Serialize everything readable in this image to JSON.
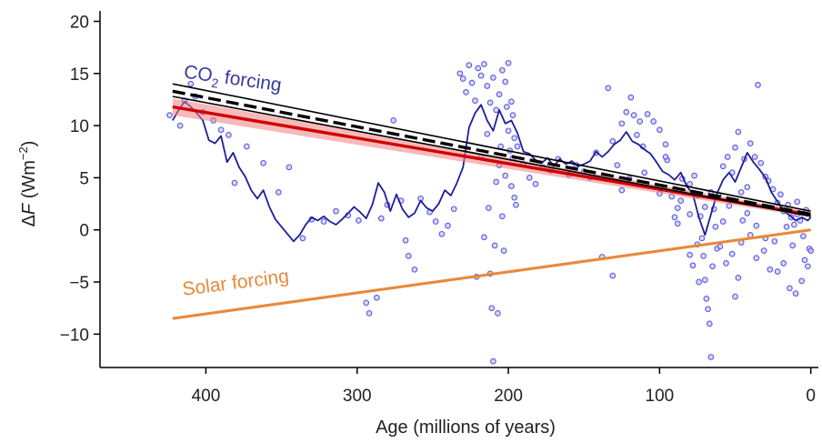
{
  "chart_data": {
    "type": "scatter",
    "title": "",
    "xlabel": "Age (millions of years)",
    "ylabel_parts": {
      "delta": "Δ",
      "F": "F",
      "unit_open": " (Wm",
      "exp": "−2",
      "unit_close": ")"
    },
    "xlim": [
      470,
      -5
    ],
    "ylim": [
      -13.2,
      21
    ],
    "x_reversed": true,
    "x_ticks": [
      {
        "value": 400,
        "label": "400"
      },
      {
        "value": 300,
        "label": "300"
      },
      {
        "value": 200,
        "label": "200"
      },
      {
        "value": 100,
        "label": "100"
      },
      {
        "value": 0,
        "label": "0"
      }
    ],
    "y_ticks": [
      {
        "value": 20,
        "label": "20"
      },
      {
        "value": 15,
        "label": "15"
      },
      {
        "value": 10,
        "label": "10"
      },
      {
        "value": 5,
        "label": "5"
      },
      {
        "value": 0,
        "label": "0"
      },
      {
        "value": -5,
        "label": "−5"
      },
      {
        "value": -10,
        "label": "−10"
      }
    ],
    "grid": false,
    "annotations": [
      {
        "name": "co2-label",
        "text_main": "CO",
        "text_sub": "2",
        "text_rest": " forcing",
        "x": 415,
        "y": 14.6,
        "rotate": 8,
        "color": "#3a3aa0"
      },
      {
        "name": "solar-label",
        "text_main": "Solar forcing",
        "text_sub": "",
        "text_rest": "",
        "x": 415,
        "y": -6.3,
        "rotate": -7.3,
        "color": "#e8893a"
      }
    ],
    "series": [
      {
        "kind": "line",
        "color": "#1e1e9a",
        "width": 1.8,
        "x": [
          422,
          418,
          414,
          410,
          406,
          402,
          398,
          394,
          390,
          386,
          382,
          378,
          374,
          370,
          366,
          362,
          358,
          354,
          350,
          346,
          342,
          338,
          334,
          330,
          326,
          322,
          318,
          314,
          310,
          306,
          302,
          298,
          294,
          290,
          286,
          282,
          278,
          274,
          270,
          266,
          262,
          258,
          254,
          250,
          246,
          242,
          238,
          234,
          230,
          226,
          222,
          218,
          214,
          210,
          206,
          202,
          198,
          194,
          190,
          186,
          182,
          178,
          174,
          170,
          166,
          162,
          158,
          154,
          150,
          146,
          142,
          138,
          134,
          130,
          126,
          122,
          118,
          114,
          110,
          106,
          102,
          98,
          94,
          90,
          86,
          82,
          78,
          74,
          70,
          66,
          62,
          58,
          54,
          50,
          46,
          42,
          38,
          34,
          30,
          26,
          22,
          18,
          14,
          10,
          6,
          2,
          0
        ],
        "y": [
          10.5,
          11.5,
          12.3,
          11.8,
          11.2,
          10.5,
          8.6,
          8.3,
          9.0,
          6.5,
          7.4,
          6.0,
          5.1,
          3.8,
          3.0,
          3.8,
          2.2,
          1.0,
          0.3,
          -0.4,
          -1.1,
          -0.5,
          0.5,
          1.2,
          0.9,
          1.3,
          0.8,
          0.5,
          1.0,
          1.6,
          2.2,
          1.7,
          1.1,
          2.4,
          4.5,
          3.6,
          1.8,
          3.4,
          2.0,
          1.2,
          1.6,
          2.8,
          2.1,
          1.8,
          2.5,
          3.8,
          3.3,
          4.5,
          6.0,
          9.8,
          11.2,
          12.0,
          10.5,
          9.5,
          11.5,
          10.2,
          10.5,
          9.3,
          7.5,
          7.3,
          6.7,
          6.4,
          6.9,
          6.1,
          6.8,
          6.3,
          6.6,
          6.1,
          6.3,
          6.6,
          7.5,
          7.0,
          7.5,
          8.2,
          8.6,
          9.4,
          8.5,
          8.2,
          7.7,
          7.3,
          6.5,
          5.6,
          5.3,
          4.8,
          5.5,
          4.2,
          3.4,
          1.2,
          -0.5,
          1.5,
          3.5,
          4.8,
          5.5,
          4.6,
          6.0,
          7.4,
          6.5,
          5.8,
          5.0,
          3.6,
          2.7,
          1.8,
          1.4,
          0.9,
          1.2,
          0.9,
          1.2
        ]
      },
      {
        "kind": "band",
        "color": "#d00000",
        "fill": "#f08080",
        "x": [
          422,
          0
        ],
        "y_upper": [
          12.6,
          1.7
        ],
        "y_lower": [
          11.0,
          1.2
        ],
        "y_center": [
          11.8,
          1.45
        ]
      },
      {
        "kind": "line",
        "color": "#d00000",
        "width": 3.4,
        "x": [
          422,
          0
        ],
        "y": [
          11.8,
          1.45
        ]
      },
      {
        "kind": "line",
        "color": "#000000",
        "width": 1.6,
        "x": [
          422,
          0
        ],
        "y": [
          14.0,
          1.8
        ]
      },
      {
        "kind": "line",
        "color": "#000000",
        "width": 1.6,
        "x": [
          422,
          0
        ],
        "y": [
          12.8,
          1.3
        ]
      },
      {
        "kind": "line",
        "color": "#000000",
        "width": 3.4,
        "dash": "14 6",
        "x": [
          422,
          0
        ],
        "y": [
          13.3,
          1.5
        ]
      },
      {
        "kind": "line",
        "color": "#e8893a",
        "width": 3,
        "x": [
          422,
          0
        ],
        "y": [
          -8.5,
          0
        ]
      }
    ],
    "points": {
      "color": "#5a5ae0",
      "fill": "#c8c8f4",
      "xy": [
        [
          424,
          11
        ],
        [
          417,
          10
        ],
        [
          414,
          12.4
        ],
        [
          410,
          14
        ],
        [
          407,
          12.8
        ],
        [
          402,
          11.3
        ],
        [
          395,
          10.5
        ],
        [
          390,
          9.6
        ],
        [
          385,
          9.1
        ],
        [
          381,
          4.5
        ],
        [
          373,
          8.0
        ],
        [
          362,
          6.4
        ],
        [
          352,
          3.6
        ],
        [
          345,
          6.0
        ],
        [
          336,
          -0.8
        ],
        [
          330,
          1.0
        ],
        [
          322,
          0.8
        ],
        [
          314,
          1.8
        ],
        [
          306,
          1.4
        ],
        [
          299,
          0.9
        ],
        [
          294,
          -7.0
        ],
        [
          292,
          -8.0
        ],
        [
          287,
          -6.5
        ],
        [
          284,
          1.1
        ],
        [
          280,
          2.4
        ],
        [
          276,
          10.5
        ],
        [
          271,
          2.8
        ],
        [
          268,
          -1.0
        ],
        [
          266,
          -2.5
        ],
        [
          262,
          -3.8
        ],
        [
          258,
          3.0
        ],
        [
          252,
          1.7
        ],
        [
          248,
          0.8
        ],
        [
          244,
          -0.4
        ],
        [
          240,
          0.4
        ],
        [
          236,
          2.0
        ],
        [
          232,
          15
        ],
        [
          230,
          14.5
        ],
        [
          228,
          13.2
        ],
        [
          226,
          15.8
        ],
        [
          224,
          14.1
        ],
        [
          222,
          12.4
        ],
        [
          220,
          15.5
        ],
        [
          218,
          14.8
        ],
        [
          216,
          15.9
        ],
        [
          214,
          13.8
        ],
        [
          212,
          12.2
        ],
        [
          210,
          14.6
        ],
        [
          208,
          11.5
        ],
        [
          206,
          13.0
        ],
        [
          204,
          15.3
        ],
        [
          202,
          14.2
        ],
        [
          200,
          16.0
        ],
        [
          198,
          12.3
        ],
        [
          197,
          11.0
        ],
        [
          196,
          8.8
        ],
        [
          221,
          -4.5
        ],
        [
          218,
          7.0
        ],
        [
          216,
          -0.7
        ],
        [
          214,
          9.2
        ],
        [
          213,
          2.1
        ],
        [
          212,
          -4.2
        ],
        [
          211,
          -7.5
        ],
        [
          210,
          -12.6
        ],
        [
          209,
          -1.5
        ],
        [
          208,
          4.6
        ],
        [
          207,
          -8.0
        ],
        [
          206,
          6.2
        ],
        [
          205,
          8.0
        ],
        [
          204,
          1.3
        ],
        [
          203,
          -2.0
        ],
        [
          202,
          5.2
        ],
        [
          201,
          11.8
        ],
        [
          200,
          9.5
        ],
        [
          199,
          7.6
        ],
        [
          198,
          4.2
        ],
        [
          197,
          6.9
        ],
        [
          196,
          3.1
        ],
        [
          195,
          2.4
        ],
        [
          194,
          8.0
        ],
        [
          190,
          6.3
        ],
        [
          186,
          5.0
        ],
        [
          182,
          4.4
        ],
        [
          177,
          6.0
        ],
        [
          172,
          5.7
        ],
        [
          167,
          6.8
        ],
        [
          160,
          5.3
        ],
        [
          155,
          6.2
        ],
        [
          150,
          5.6
        ],
        [
          146,
          5.0
        ],
        [
          142,
          7.4
        ],
        [
          138,
          -2.6
        ],
        [
          134,
          13.6
        ],
        [
          131,
          8.5
        ],
        [
          128,
          6.2
        ],
        [
          125,
          10.2
        ],
        [
          122,
          11.3
        ],
        [
          119,
          12.7
        ],
        [
          117,
          11.0
        ],
        [
          115,
          9.1
        ],
        [
          113,
          10.4
        ],
        [
          111,
          8.0
        ],
        [
          108,
          11.1
        ],
        [
          104,
          10.4
        ],
        [
          100,
          9.6
        ],
        [
          96,
          8.2
        ],
        [
          92,
          3.2
        ],
        [
          88,
          0.6
        ],
        [
          131,
          -4.4
        ],
        [
          125,
          3.8
        ],
        [
          120,
          4.9
        ],
        [
          110,
          5.5
        ],
        [
          100,
          3.5
        ],
        [
          95,
          6.7
        ],
        [
          90,
          1.2
        ],
        [
          77,
          5.2
        ],
        [
          75,
          3.3
        ],
        [
          73,
          1.3
        ],
        [
          72,
          -0.8
        ],
        [
          71,
          -2.5
        ],
        [
          70,
          -4.8
        ],
        [
          69,
          -6.6
        ],
        [
          68,
          -7.6
        ],
        [
          67,
          -9.0
        ],
        [
          66,
          -12.2
        ],
        [
          65,
          -3.5
        ],
        [
          64,
          2.0
        ],
        [
          63,
          0.3
        ],
        [
          62,
          -1.8
        ],
        [
          61,
          3.3
        ],
        [
          58,
          6.1
        ],
        [
          55,
          7.0
        ],
        [
          52,
          5.5
        ],
        [
          50,
          7.9
        ],
        [
          48,
          9.4
        ],
        [
          46,
          3.6
        ],
        [
          44,
          6.8
        ],
        [
          42,
          4.1
        ],
        [
          40,
          8.3
        ],
        [
          37,
          7.0
        ],
        [
          35,
          13.9
        ],
        [
          33,
          6.4
        ],
        [
          30,
          5.1
        ],
        [
          28,
          4.7
        ],
        [
          25,
          3.9
        ],
        [
          22,
          2.6
        ],
        [
          20,
          3.4
        ],
        [
          18,
          1.8
        ],
        [
          15,
          2.4
        ],
        [
          13,
          1.2
        ],
        [
          11,
          0.5
        ],
        [
          9,
          2.7
        ],
        [
          7,
          0.9
        ],
        [
          5,
          -0.6
        ],
        [
          3,
          1.9
        ],
        [
          1,
          -1.8
        ],
        [
          50,
          -6.4
        ],
        [
          48,
          -4.6
        ],
        [
          45,
          0.9
        ],
        [
          40,
          -0.5
        ],
        [
          36,
          -2.7
        ],
        [
          31,
          -2.0
        ],
        [
          27,
          -3.8
        ],
        [
          22,
          -4.0
        ],
        [
          18,
          -3.2
        ],
        [
          14,
          -5.6
        ],
        [
          10,
          -6.1
        ],
        [
          6,
          -4.9
        ],
        [
          4,
          -2.9
        ],
        [
          2,
          -3.5
        ],
        [
          0,
          -2.0
        ],
        [
          96,
          7.0
        ],
        [
          90,
          3.9
        ],
        [
          85,
          4.9
        ],
        [
          80,
          4.4
        ],
        [
          86,
          2.8
        ],
        [
          80,
          -2.4
        ],
        [
          75,
          -1.4
        ],
        [
          78,
          -3.4
        ],
        [
          74,
          -5.0
        ],
        [
          60,
          -1.6
        ],
        [
          56,
          -3.2
        ],
        [
          52,
          -2.3
        ],
        [
          58,
          0.8
        ],
        [
          54,
          2.3
        ],
        [
          9,
          1.5
        ],
        [
          12,
          -1.5
        ],
        [
          16,
          0.3
        ],
        [
          24,
          -1.1
        ],
        [
          30,
          -0.8
        ],
        [
          36,
          0.4
        ],
        [
          42,
          1.6
        ],
        [
          46,
          -1.2
        ],
        [
          66,
          3.6
        ],
        [
          70,
          2.2
        ],
        [
          80,
          1.5
        ],
        [
          84,
          3.6
        ],
        [
          88,
          2.1
        ]
      ]
    }
  }
}
